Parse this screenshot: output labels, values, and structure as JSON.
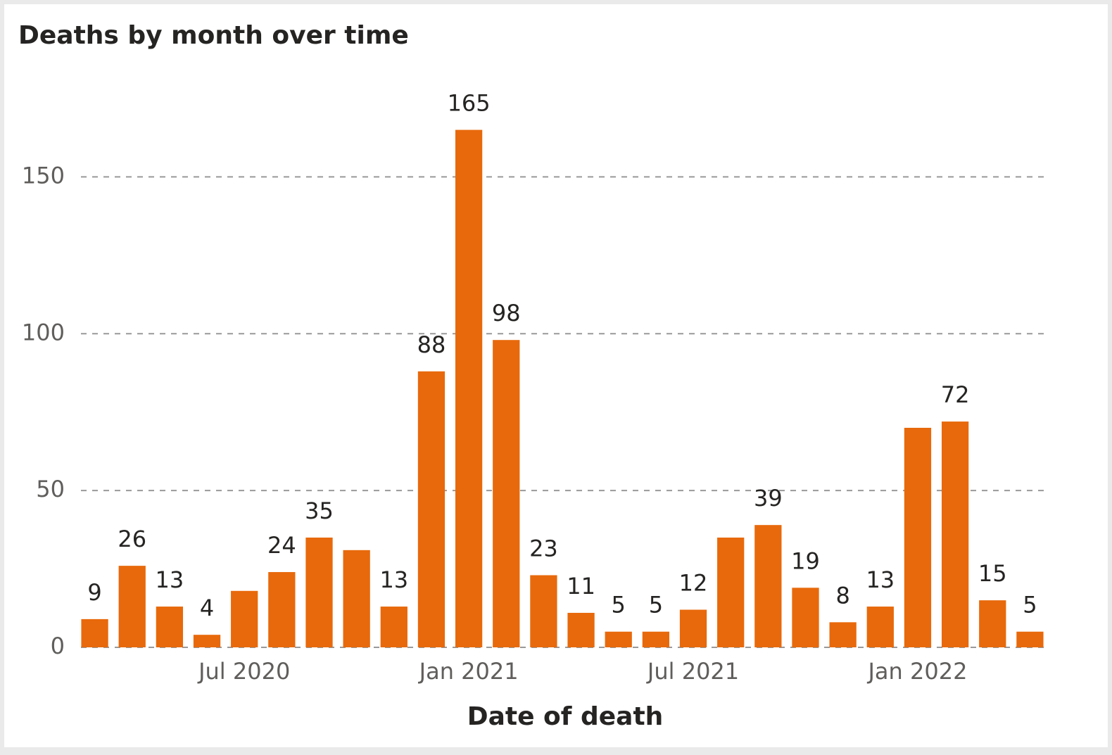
{
  "chart_data": {
    "type": "bar",
    "title": "Deaths by month over time",
    "x_label": "Date of death",
    "x": [
      "2020-03",
      "2020-04",
      "2020-05",
      "2020-06",
      "2020-07",
      "2020-08",
      "2020-09",
      "2020-10",
      "2020-11",
      "2020-12",
      "2021-01",
      "2021-02",
      "2021-03",
      "2021-04",
      "2021-05",
      "2021-06",
      "2021-07",
      "2021-08",
      "2021-09",
      "2021-10",
      "2021-11",
      "2021-12",
      "2022-01",
      "2022-02",
      "2022-03",
      "2022-04"
    ],
    "values": [
      9,
      26,
      13,
      4,
      18,
      24,
      35,
      31,
      13,
      88,
      165,
      98,
      23,
      11,
      5,
      5,
      12,
      35,
      39,
      19,
      8,
      13,
      70,
      72,
      15,
      5
    ],
    "value_labels": [
      "9",
      "26",
      "13",
      "4",
      null,
      "24",
      "35",
      null,
      "13",
      "88",
      "165",
      "98",
      "23",
      "11",
      "5",
      "5",
      "12",
      null,
      "39",
      "19",
      "8",
      "13",
      null,
      "72",
      "15",
      "5"
    ],
    "color": "#e8690b",
    "xticks": [
      {
        "value": "2020-07",
        "label": "Jul 2020"
      },
      {
        "value": "2021-01",
        "label": "Jan 2021"
      },
      {
        "value": "2021-07",
        "label": "Jul 2021"
      },
      {
        "value": "2022-01",
        "label": "Jan 2022"
      }
    ],
    "ylim": [
      0,
      175
    ],
    "yticks": [
      0,
      50,
      100,
      150
    ],
    "grid": true
  }
}
